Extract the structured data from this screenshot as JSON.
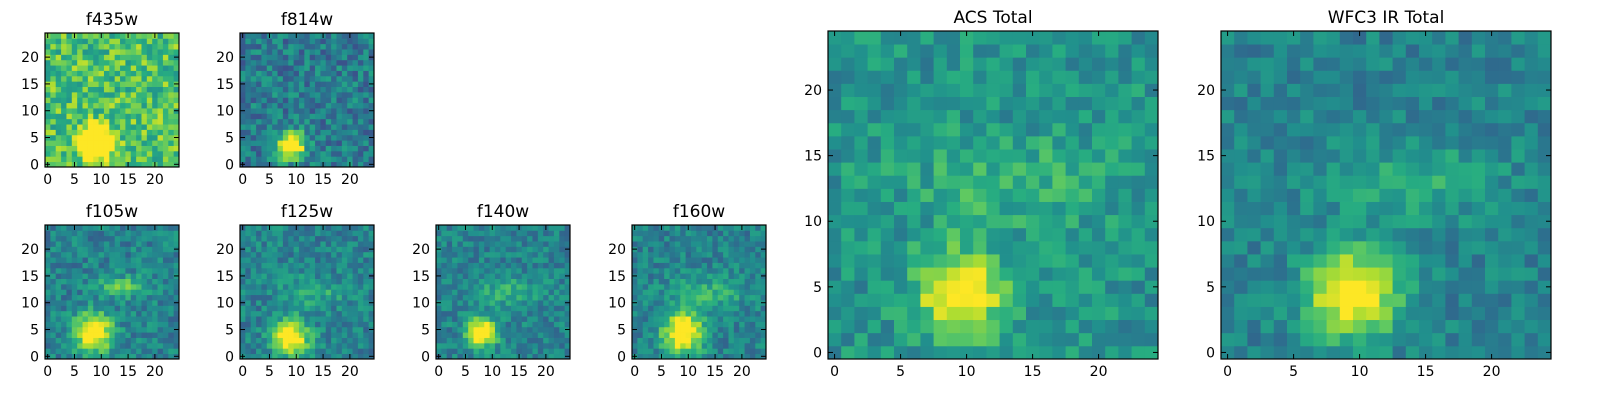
{
  "chart_data": [
    {
      "type": "heatmap",
      "title": "f435w",
      "grid_size": 25,
      "xlim": [
        -0.5,
        24.5
      ],
      "ylim": [
        -0.5,
        24.5
      ],
      "xticks": [
        0,
        5,
        10,
        15,
        20
      ],
      "yticks": [
        0,
        5,
        10,
        15,
        20
      ],
      "colormap": "viridis",
      "source": {
        "cx": 9,
        "cy": 4,
        "sigma": 2.0,
        "peak": 0.95
      },
      "arc": null,
      "background": {
        "mean": 0.72,
        "noise": 0.2,
        "seed": 11
      },
      "grid": false
    },
    {
      "type": "heatmap",
      "title": "f814w",
      "grid_size": 25,
      "xlim": [
        -0.5,
        24.5
      ],
      "ylim": [
        -0.5,
        24.5
      ],
      "xticks": [
        0,
        5,
        10,
        15,
        20
      ],
      "yticks": [
        0,
        5,
        10,
        15,
        20
      ],
      "colormap": "viridis",
      "source": {
        "cx": 9,
        "cy": 3.5,
        "sigma": 1.8,
        "peak": 0.85
      },
      "arc": null,
      "background": {
        "mean": 0.42,
        "noise": 0.17,
        "seed": 23
      },
      "grid": false
    },
    {
      "type": "heatmap",
      "title": "f105w",
      "grid_size": 25,
      "xlim": [
        -0.5,
        24.5
      ],
      "ylim": [
        -0.5,
        24.5
      ],
      "xticks": [
        0,
        5,
        10,
        15,
        20
      ],
      "yticks": [
        0,
        5,
        10,
        15,
        20
      ],
      "colormap": "viridis",
      "source": {
        "cx": 8.5,
        "cy": 4.5,
        "sigma": 2.4,
        "peak": 0.75
      },
      "arc": {
        "cx": 14,
        "cy": 13,
        "sigma": 1.4,
        "peak": 0.3
      },
      "background": {
        "mean": 0.45,
        "noise": 0.14,
        "seed": 37
      },
      "grid": false
    },
    {
      "type": "heatmap",
      "title": "f125w",
      "grid_size": 25,
      "xlim": [
        -0.5,
        24.5
      ],
      "ylim": [
        -0.5,
        24.5
      ],
      "xticks": [
        0,
        5,
        10,
        15,
        20
      ],
      "yticks": [
        0,
        5,
        10,
        15,
        20
      ],
      "colormap": "viridis",
      "source": {
        "cx": 9,
        "cy": 3.5,
        "sigma": 2.3,
        "peak": 0.7
      },
      "arc": {
        "cx": 13,
        "cy": 12,
        "sigma": 1.8,
        "peak": 0.2
      },
      "background": {
        "mean": 0.45,
        "noise": 0.14,
        "seed": 41
      },
      "grid": false
    },
    {
      "type": "heatmap",
      "title": "f140w",
      "grid_size": 25,
      "xlim": [
        -0.5,
        24.5
      ],
      "ylim": [
        -0.5,
        24.5
      ],
      "xticks": [
        0,
        5,
        10,
        15,
        20
      ],
      "yticks": [
        0,
        5,
        10,
        15,
        20
      ],
      "colormap": "viridis",
      "source": {
        "cx": 8,
        "cy": 4.5,
        "sigma": 1.9,
        "peak": 0.72
      },
      "arc": {
        "cx": 13,
        "cy": 12,
        "sigma": 2.0,
        "peak": 0.18
      },
      "background": {
        "mean": 0.45,
        "noise": 0.13,
        "seed": 53
      },
      "grid": false
    },
    {
      "type": "heatmap",
      "title": "f160w",
      "grid_size": 25,
      "xlim": [
        -0.5,
        24.5
      ],
      "ylim": [
        -0.5,
        24.5
      ],
      "xticks": [
        0,
        5,
        10,
        15,
        20
      ],
      "yticks": [
        0,
        5,
        10,
        15,
        20
      ],
      "colormap": "viridis",
      "source": {
        "cx": 9,
        "cy": 4.5,
        "sigma": 2.6,
        "peak": 0.72
      },
      "arc": {
        "cx": 14,
        "cy": 12,
        "sigma": 2.2,
        "peak": 0.2
      },
      "background": {
        "mean": 0.45,
        "noise": 0.13,
        "seed": 67
      },
      "grid": false
    },
    {
      "type": "heatmap",
      "title": "ACS Total",
      "grid_size": 25,
      "xlim": [
        -0.5,
        24.5
      ],
      "ylim": [
        -0.5,
        24.5
      ],
      "xticks": [
        0,
        5,
        10,
        15,
        20
      ],
      "yticks": [
        0,
        5,
        10,
        15,
        20
      ],
      "colormap": "viridis",
      "source": {
        "cx": 9.5,
        "cy": 4.5,
        "sigma": 2.2,
        "peak": 0.62
      },
      "arc": {
        "cx": 13,
        "cy": 13,
        "sigma": 2.4,
        "peak": 0.15
      },
      "background": {
        "mean": 0.52,
        "noise": 0.13,
        "seed": 79
      },
      "grid": false
    },
    {
      "type": "heatmap",
      "title": "WFC3 IR Total",
      "grid_size": 25,
      "xlim": [
        -0.5,
        24.5
      ],
      "ylim": [
        -0.5,
        24.5
      ],
      "xticks": [
        0,
        5,
        10,
        15,
        20
      ],
      "yticks": [
        0,
        5,
        10,
        15,
        20
      ],
      "colormap": "viridis",
      "source": {
        "cx": 9.5,
        "cy": 4.5,
        "sigma": 2.3,
        "peak": 0.68
      },
      "arc": {
        "cx": 14,
        "cy": 13,
        "sigma": 2.2,
        "peak": 0.17
      },
      "background": {
        "mean": 0.45,
        "noise": 0.11,
        "seed": 97
      },
      "grid": false
    }
  ]
}
